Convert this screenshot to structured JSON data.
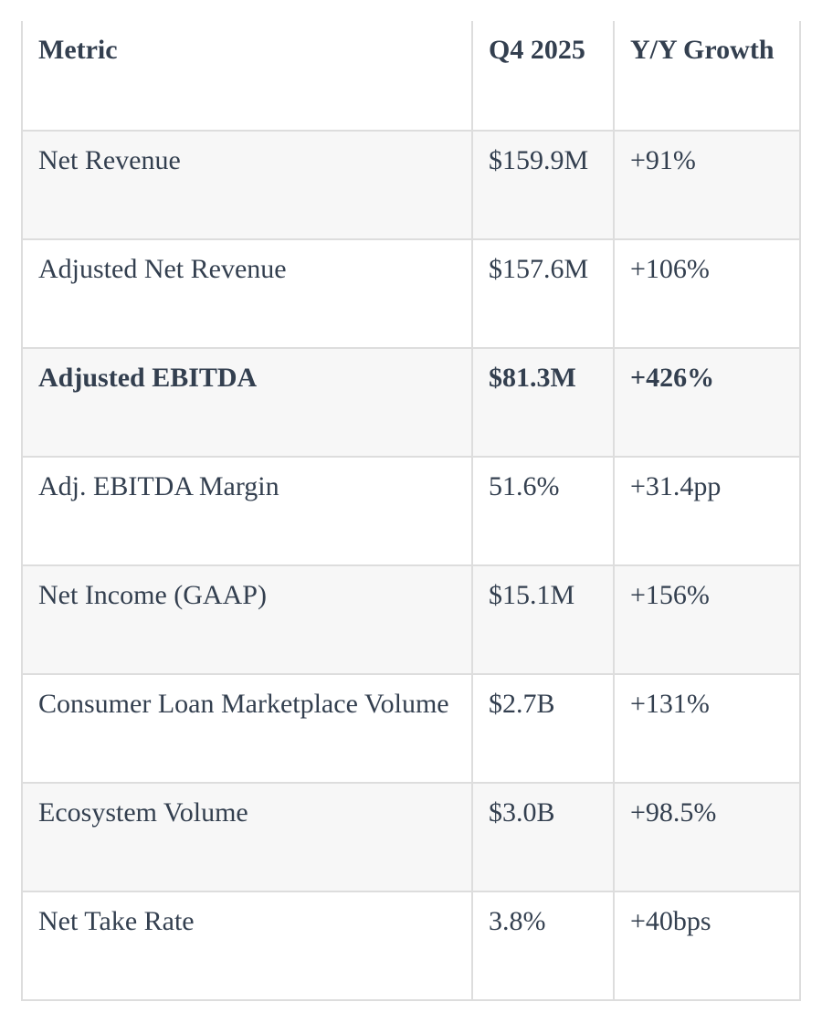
{
  "chart_data": {
    "type": "table",
    "columns": [
      "Metric",
      "Q4 2025",
      "Y/Y Growth"
    ],
    "rows": [
      {
        "metric": "Net Revenue",
        "q4_2025": "$159.9M",
        "yy_growth": "+91%",
        "bold": false,
        "striped": true
      },
      {
        "metric": "Adjusted Net Revenue",
        "q4_2025": "$157.6M",
        "yy_growth": "+106%",
        "bold": false,
        "striped": false
      },
      {
        "metric": "Adjusted EBITDA",
        "q4_2025": "$81.3M",
        "yy_growth": "+426%",
        "bold": true,
        "striped": true
      },
      {
        "metric": "Adj. EBITDA Margin",
        "q4_2025": "51.6%",
        "yy_growth": "+31.4pp",
        "bold": false,
        "striped": false
      },
      {
        "metric": "Net Income (GAAP)",
        "q4_2025": "$15.1M",
        "yy_growth": "+156%",
        "bold": false,
        "striped": true
      },
      {
        "metric": "Consumer Loan Marketplace Volume",
        "q4_2025": "$2.7B",
        "yy_growth": "+131%",
        "bold": false,
        "striped": false
      },
      {
        "metric": "Ecosystem Volume",
        "q4_2025": "$3.0B",
        "yy_growth": "+98.5%",
        "bold": false,
        "striped": true
      },
      {
        "metric": "Net Take Rate",
        "q4_2025": "3.8%",
        "yy_growth": "+40bps",
        "bold": false,
        "striped": false
      }
    ],
    "layout": {
      "legend": "none",
      "grid": "bordered",
      "stripe_color": "#f7f7f7",
      "border_color": "#dddddd",
      "text_color": "#333f4f",
      "background_color": "#ffffff"
    }
  }
}
